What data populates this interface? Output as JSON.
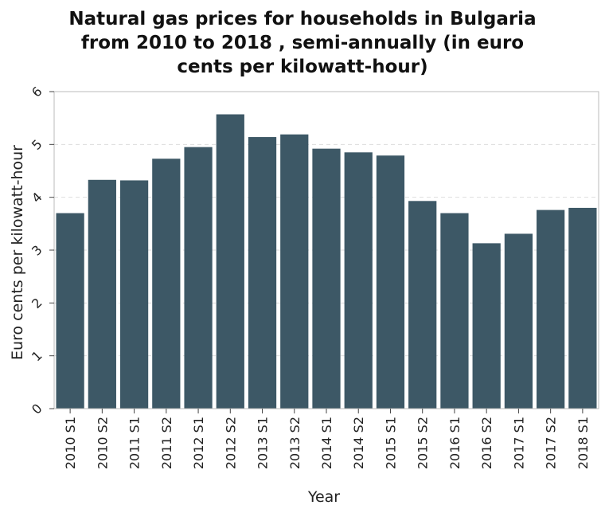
{
  "chart_data": {
    "type": "bar",
    "title": "Natural gas prices for households in Bulgaria from 2010 to 2018 , semi-annually (in euro cents per kilowatt-hour)",
    "title_lines": [
      "Natural gas prices for households in Bulgaria",
      "from 2010 to 2018 , semi-annually (in euro",
      "cents per kilowatt-hour)"
    ],
    "xlabel": "Year",
    "ylabel": "Euro cents per kilowatt-hour",
    "ylim": [
      0,
      6
    ],
    "yticks": [
      "0",
      "1",
      "2",
      "3",
      "4",
      "5",
      "6"
    ],
    "grid": true,
    "categories": [
      "2010 S1",
      "2010 S2",
      "2011 S1",
      "2011 S2",
      "2012 S1",
      "2012 S2",
      "2013 S1",
      "2013 S2",
      "2014 S1",
      "2014 S2",
      "2015 S1",
      "2015 S2",
      "2016 S1",
      "2016 S2",
      "2017 S1",
      "2017 S2",
      "2018 S1"
    ],
    "values": [
      3.7,
      4.33,
      4.32,
      4.73,
      4.95,
      5.57,
      5.14,
      5.19,
      4.92,
      4.85,
      4.79,
      3.93,
      3.7,
      3.13,
      3.31,
      3.76,
      3.8
    ],
    "colors": {
      "bar": "#3d5866",
      "grid": "#dddddd",
      "frame": "#bbbbbb"
    }
  }
}
